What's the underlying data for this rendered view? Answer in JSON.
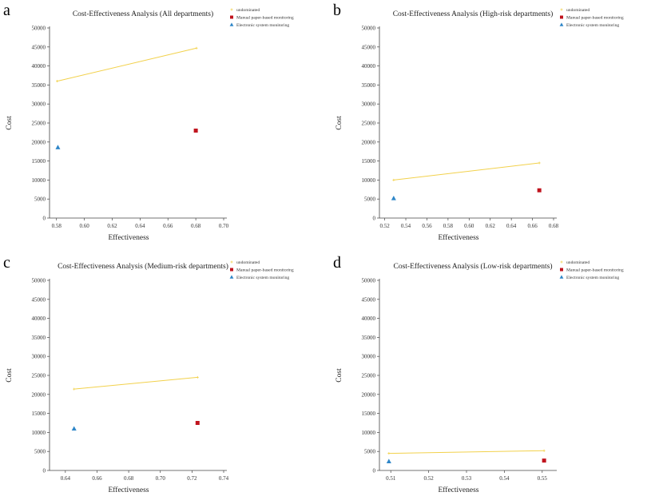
{
  "chart_data": [
    {
      "type": "scatter",
      "panel_label": "a",
      "title": "Cost-Effectiveness Analysis (All departments)",
      "xlabel": "Effectiveness",
      "ylabel": "Cost",
      "xlim": [
        0.575,
        0.7
      ],
      "ylim": [
        0,
        50000
      ],
      "xticks": [
        "0.58",
        "0.60",
        "0.62",
        "0.64",
        "0.66",
        "0.68",
        "0.70"
      ],
      "yticks": [
        "0",
        "5000",
        "10000",
        "15000",
        "20000",
        "25000",
        "30000",
        "35000",
        "40000",
        "45000",
        "50000"
      ],
      "legend_position": "top-right",
      "series": [
        {
          "name": "undominated",
          "kind": "line",
          "color": "#f2d14b",
          "points": [
            [
              0.5805,
              36000
            ],
            [
              0.6805,
              44700
            ]
          ]
        },
        {
          "name": "Manual paper-based monitoring",
          "kind": "square",
          "color": "#c0141e",
          "points": [
            [
              0.68,
              23000
            ]
          ]
        },
        {
          "name": "Electronic system monitoring",
          "kind": "triangle",
          "color": "#2e86c8",
          "points": [
            [
              0.581,
              18600
            ]
          ]
        }
      ]
    },
    {
      "type": "scatter",
      "panel_label": "b",
      "title": "Cost-Effectiveness Analysis (High-risk departments)",
      "xlabel": "Effectiveness",
      "ylabel": "Cost",
      "xlim": [
        0.515,
        0.68
      ],
      "ylim": [
        0,
        50000
      ],
      "xticks": [
        "0.52",
        "0.54",
        "0.56",
        "0.58",
        "0.60",
        "0.62",
        "0.64",
        "0.66",
        "0.68"
      ],
      "yticks": [
        "0",
        "5000",
        "10000",
        "15000",
        "20000",
        "25000",
        "30000",
        "35000",
        "40000",
        "45000",
        "50000"
      ],
      "legend_position": "top-right",
      "series": [
        {
          "name": "undominated",
          "kind": "line",
          "color": "#f2d14b",
          "points": [
            [
              0.5285,
              10000
            ],
            [
              0.6665,
              14500
            ]
          ]
        },
        {
          "name": "Manual paper-based monitoring",
          "kind": "square",
          "color": "#c0141e",
          "points": [
            [
              0.6665,
              7300
            ]
          ]
        },
        {
          "name": "Electronic system monitoring",
          "kind": "triangle",
          "color": "#2e86c8",
          "points": [
            [
              0.5285,
              5200
            ]
          ]
        }
      ]
    },
    {
      "type": "scatter",
      "panel_label": "c",
      "title": "Cost-Effectiveness Analysis (Medium-risk departments)",
      "xlabel": "Effectiveness",
      "ylabel": "Cost",
      "xlim": [
        0.63,
        0.74
      ],
      "ylim": [
        0,
        50000
      ],
      "xticks": [
        "0.64",
        "0.66",
        "0.68",
        "0.70",
        "0.72",
        "0.74"
      ],
      "yticks": [
        "0",
        "5000",
        "10000",
        "15000",
        "20000",
        "25000",
        "30000",
        "35000",
        "40000",
        "45000",
        "50000"
      ],
      "legend_position": "top-right",
      "series": [
        {
          "name": "undominated",
          "kind": "line",
          "color": "#f2d14b",
          "points": [
            [
              0.6455,
              21400
            ],
            [
              0.7235,
              24500
            ]
          ]
        },
        {
          "name": "Manual paper-based monitoring",
          "kind": "square",
          "color": "#c0141e",
          "points": [
            [
              0.7235,
              12500
            ]
          ]
        },
        {
          "name": "Electronic system monitoring",
          "kind": "triangle",
          "color": "#2e86c8",
          "points": [
            [
              0.6455,
              11000
            ]
          ]
        }
      ]
    },
    {
      "type": "scatter",
      "panel_label": "d",
      "title": "Cost-Effectiveness Analysis (Low-risk departments)",
      "xlabel": "Effectiveness",
      "ylabel": "Cost",
      "xlim": [
        0.507,
        0.553
      ],
      "ylim": [
        0,
        50000
      ],
      "xticks": [
        "0.51",
        "0.52",
        "0.53",
        "0.54",
        "0.55"
      ],
      "yticks": [
        "0",
        "5000",
        "10000",
        "15000",
        "20000",
        "25000",
        "30000",
        "35000",
        "40000",
        "45000",
        "50000"
      ],
      "legend_position": "top-right",
      "series": [
        {
          "name": "undominated",
          "kind": "line",
          "color": "#f2d14b",
          "points": [
            [
              0.5095,
              4500
            ],
            [
              0.5505,
              5200
            ]
          ]
        },
        {
          "name": "Manual paper-based monitoring",
          "kind": "square",
          "color": "#c0141e",
          "points": [
            [
              0.5505,
              2600
            ]
          ]
        },
        {
          "name": "Electronic system monitoring",
          "kind": "triangle",
          "color": "#2e86c8",
          "points": [
            [
              0.5095,
              2400
            ]
          ]
        }
      ]
    }
  ]
}
